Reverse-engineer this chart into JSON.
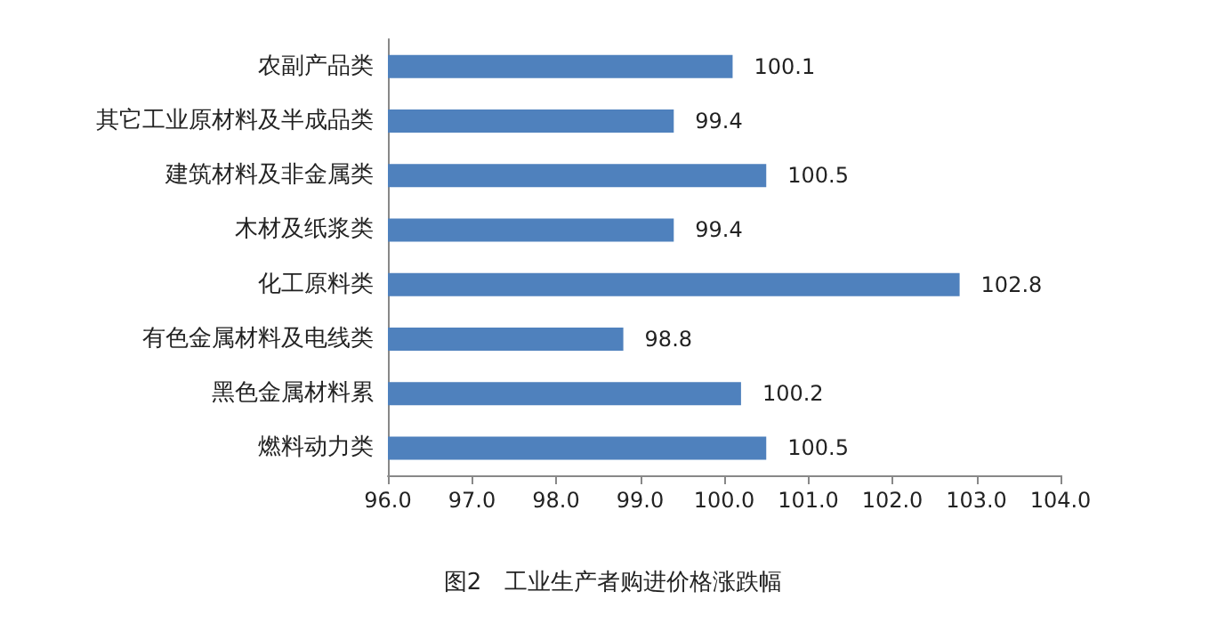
{
  "chart_data": {
    "type": "bar",
    "orientation": "horizontal",
    "title": "图2　工业生产者购进价格涨跌幅",
    "categories": [
      "农副产品类",
      "其它工业原材料及半成品类",
      "建筑材料及非金属类",
      "木材及纸浆类",
      "化工原料类",
      "有色金属材料及电线类",
      "黑色金属材料累",
      "燃料动力类"
    ],
    "values": [
      100.1,
      99.4,
      100.5,
      99.4,
      102.8,
      98.8,
      100.2,
      100.5
    ],
    "color": "#4f81bd",
    "xlim": [
      96,
      104
    ],
    "xticks": [
      {
        "value": 96,
        "label": "96.0"
      },
      {
        "value": 97,
        "label": "97.0"
      },
      {
        "value": 98,
        "label": "98.0"
      },
      {
        "value": 99,
        "label": "99.0"
      },
      {
        "value": 100,
        "label": "100.0"
      },
      {
        "value": 101,
        "label": "101.0"
      },
      {
        "value": 102,
        "label": "102.0"
      },
      {
        "value": 103,
        "label": "103.0"
      },
      {
        "value": 104,
        "label": "104.0"
      }
    ],
    "data_labels": true
  }
}
